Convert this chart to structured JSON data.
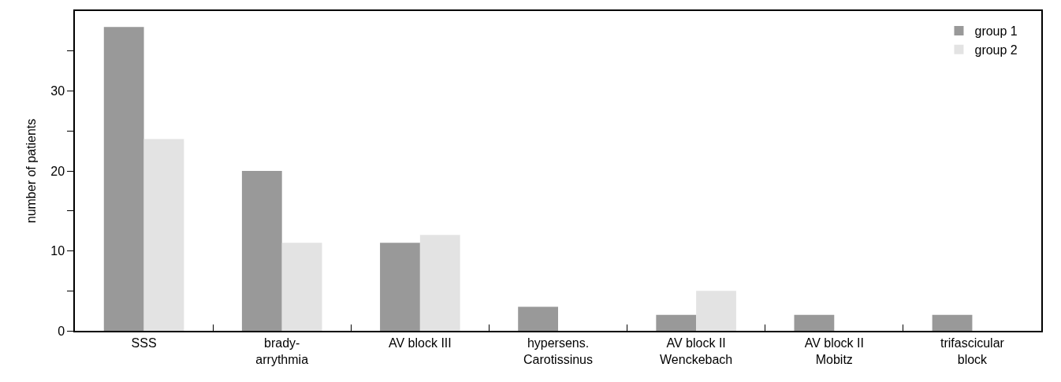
{
  "chart_data": {
    "type": "bar",
    "ylabel": "number of patients",
    "categories": [
      "SSS",
      "brady-\narrythmia",
      "AV block III",
      "hypersens.\nCarotissinus",
      "AV block II\nWenckebach",
      "AV block II\nMobitz",
      "trifascicular\nblock"
    ],
    "series": [
      {
        "name": "group 1",
        "color": "#999999",
        "values": [
          38,
          20,
          11,
          3,
          2,
          2,
          2
        ]
      },
      {
        "name": "group 2",
        "color": "#e3e3e3",
        "values": [
          24,
          11,
          12,
          0,
          5,
          0,
          0
        ]
      }
    ],
    "ylim": [
      0,
      40
    ],
    "yticks": [
      0,
      {
        "value": 5,
        "label": null
      },
      10,
      {
        "value": 15,
        "label": null
      },
      20,
      {
        "value": 25,
        "label": null
      },
      30,
      {
        "value": 35,
        "label": null
      }
    ],
    "legend": "top right"
  }
}
